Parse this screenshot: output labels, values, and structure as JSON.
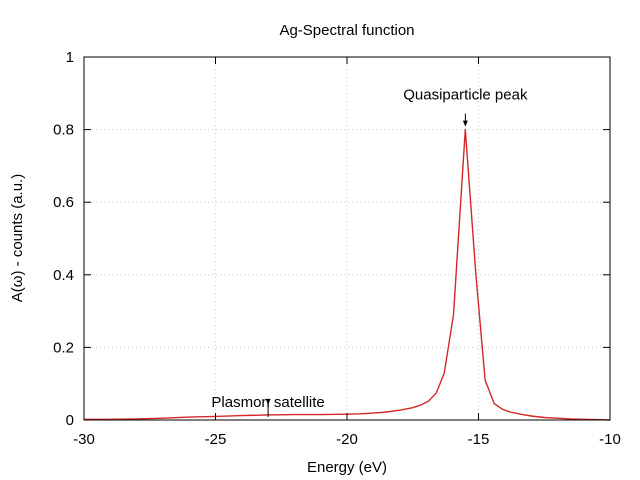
{
  "chart_data": {
    "type": "line",
    "title": "Ag-Spectral function",
    "xlabel": "Energy (eV)",
    "ylabel": "A(ω) - counts (a.u.)",
    "xlim": [
      -30,
      -10
    ],
    "ylim": [
      0,
      1
    ],
    "xticks": [
      -30,
      -25,
      -20,
      -15,
      -10
    ],
    "yticks": [
      0,
      0.2,
      0.4,
      0.6,
      0.8,
      1
    ],
    "xtick_labels": [
      "-30",
      "-25",
      "-20",
      "-15",
      "-10"
    ],
    "ytick_labels": [
      "0",
      "0.2",
      "0.4",
      "0.6",
      "0.8",
      "1"
    ],
    "grid": true,
    "series": [
      {
        "color": "#d62728",
        "x": [
          -30,
          -29,
          -28,
          -27,
          -26,
          -25,
          -24,
          -23,
          -22,
          -21,
          -20,
          -19.5,
          -19,
          -18.5,
          -18,
          -17.5,
          -17.2,
          -16.9,
          -16.6,
          -16.3,
          -15.95,
          -15.5,
          -15.1,
          -14.75,
          -14.4,
          -14.1,
          -13.8,
          -13.4,
          -13,
          -12.5,
          -12,
          -11.5,
          -11,
          -10.5,
          -10
        ],
        "y": [
          0.002,
          0.002,
          0.003,
          0.005,
          0.008,
          0.01,
          0.012,
          0.014,
          0.015,
          0.015,
          0.016,
          0.017,
          0.019,
          0.022,
          0.027,
          0.034,
          0.041,
          0.052,
          0.075,
          0.13,
          0.29,
          0.8,
          0.4,
          0.11,
          0.045,
          0.03,
          0.022,
          0.016,
          0.011,
          0.007,
          0.005,
          0.003,
          0.002,
          0.001,
          0.0
        ]
      }
    ],
    "annotations": [
      {
        "text": "Quasiparticle peak",
        "x": -15.5,
        "y": 0.8
      },
      {
        "text": "Plasmon satellite",
        "x": -23,
        "y": 0.025
      }
    ]
  }
}
